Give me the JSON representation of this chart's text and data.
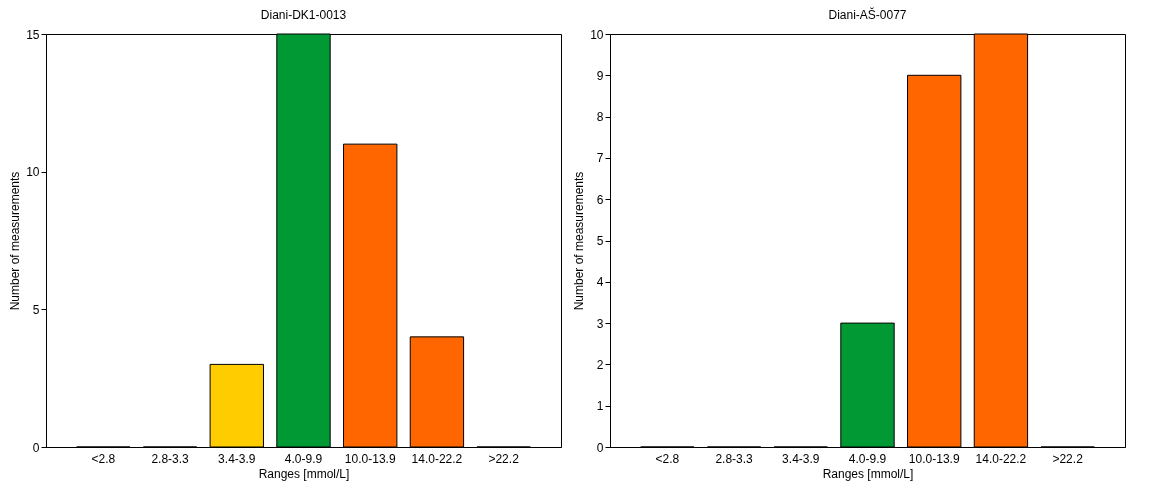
{
  "chart_data": [
    {
      "type": "bar",
      "title": "Diani-DK1-0013",
      "xlabel": "Ranges [mmol/L]",
      "ylabel": "Number of measurements",
      "categories": [
        "<2.8",
        "2.8-3.3",
        "3.4-3.9",
        "4.0-9.9",
        "10.0-13.9",
        "14.0-22.2",
        ">22.2"
      ],
      "values": [
        0,
        0,
        3,
        15,
        11,
        4,
        0
      ],
      "colors": [
        null,
        null,
        "#ffcc00",
        "#009933",
        "#ff6600",
        "#ff6600",
        null
      ],
      "ylim": [
        0,
        15
      ],
      "yticks": [
        0,
        5,
        10,
        15
      ]
    },
    {
      "type": "bar",
      "title": "Diani-AŠ-0077",
      "xlabel": "Ranges [mmol/L]",
      "ylabel": "Number of measurements",
      "categories": [
        "<2.8",
        "2.8-3.3",
        "3.4-3.9",
        "4.0-9.9",
        "10.0-13.9",
        "14.0-22.2",
        ">22.2"
      ],
      "values": [
        0,
        0,
        0,
        3,
        9,
        10,
        0
      ],
      "colors": [
        null,
        null,
        null,
        "#009933",
        "#ff6600",
        "#ff6600",
        null
      ],
      "ylim": [
        0,
        10
      ],
      "yticks": [
        0,
        1,
        2,
        3,
        4,
        5,
        6,
        7,
        8,
        9,
        10
      ]
    }
  ]
}
